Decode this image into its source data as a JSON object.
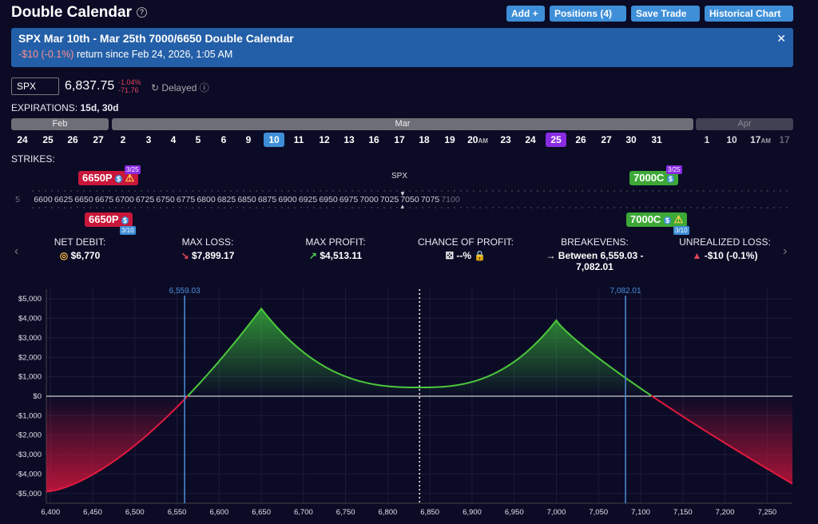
{
  "header": {
    "title": "Double Calendar",
    "buttons": {
      "add": "Add +",
      "positions": "Positions (4)",
      "save": "Save Trade",
      "historical": "Historical Chart"
    }
  },
  "banner": {
    "title": "SPX Mar 10th - Mar 25th 7000/6650 Double Calendar",
    "return_value": "-$10 (-0.1%)",
    "return_text": "return since Feb 24, 2026, 1:05 AM"
  },
  "quote": {
    "symbol": "SPX",
    "price": "6,837.75",
    "change_pct": "-1.04%",
    "change_abs": "-71.76",
    "status": "Delayed"
  },
  "expirations": {
    "label": "EXPIRATIONS:",
    "value": "15d, 30d"
  },
  "calendar": {
    "months": [
      "Feb",
      "Mar",
      "Apr"
    ],
    "days": [
      "24",
      "25",
      "26",
      "27",
      "2",
      "3",
      "4",
      "5",
      "6",
      "9",
      "10",
      "11",
      "12",
      "13",
      "16",
      "17",
      "18",
      "19",
      "20",
      "23",
      "24",
      "25",
      "26",
      "27",
      "30",
      "31",
      "1",
      "10",
      "17",
      "17"
    ],
    "am_label": "AM"
  },
  "strikes": {
    "label": "STRIKES:",
    "underlying": "SPX",
    "ticks": [
      "5",
      "6600",
      "6625",
      "6650",
      "6675",
      "6700",
      "6725",
      "6750",
      "6775",
      "6800",
      "6825",
      "6850",
      "6875",
      "6900",
      "6925",
      "6950",
      "6975",
      "7000",
      "7025",
      "7050",
      "7075",
      "7100"
    ],
    "legs": {
      "put_top": "6650P",
      "put_top_date": "3/25",
      "call_top": "7000C",
      "call_top_date": "3/25",
      "put_bottom": "6650P",
      "put_bottom_date": "3/10",
      "call_bottom": "7000C",
      "call_bottom_date": "3/10"
    }
  },
  "stats": {
    "net_debit_label": "NET DEBIT:",
    "net_debit": "$6,770",
    "max_loss_label": "MAX LOSS:",
    "max_loss": "$7,899.17",
    "max_profit_label": "MAX PROFIT:",
    "max_profit": "$4,513.11",
    "chance_label": "CHANCE OF PROFIT:",
    "chance": "--%",
    "breakevens_label": "BREAKEVENS:",
    "breakevens_line1": "Between 6,559.03 -",
    "breakevens_line2": "7,082.01",
    "unrealized_label": "UNREALIZED LOSS:",
    "unrealized": "-$10 (-0.1%)"
  },
  "chart_data": {
    "type": "area",
    "title": "",
    "xlabel": "",
    "ylabel": "",
    "xlim": [
      6395,
      7280
    ],
    "ylim": [
      -5500,
      5500
    ],
    "x_ticks": [
      "6,400",
      "6,450",
      "6,500",
      "6,550",
      "6,600",
      "6,650",
      "6,700",
      "6,750",
      "6,800",
      "6,850",
      "6,900",
      "6,950",
      "7,000",
      "7,050",
      "7,100",
      "7,150",
      "7,200",
      "7,250"
    ],
    "y_ticks": [
      "$5,000",
      "$4,000",
      "$3,000",
      "$2,000",
      "$1,000",
      "$0",
      "-$1,000",
      "-$2,000",
      "-$3,000",
      "-$4,000",
      "-$5,000"
    ],
    "breakevens": [
      {
        "x": 6559.03,
        "label": "6,559.03"
      },
      {
        "x": 7082.01,
        "label": "7,082.01"
      }
    ],
    "current_price": 6837.75,
    "series": [
      {
        "x": [
          6395,
          6450,
          6500,
          6559.03,
          6600,
          6625,
          6650,
          6700,
          6750,
          6800,
          6837.75,
          6875,
          6925,
          6975,
          7000,
          7040,
          7082.01,
          7150,
          7200,
          7280
        ],
        "values": [
          -4900,
          -3200,
          -1800,
          0,
          2000,
          3100,
          4500,
          2400,
          1200,
          600,
          450,
          650,
          1400,
          2800,
          3900,
          2000,
          0,
          -2000,
          -3200,
          -4500
        ]
      }
    ],
    "colors": {
      "profit": "#3cbf3c",
      "loss": "#d4163c",
      "breakeven": "#4a90d9"
    },
    "grid": true
  }
}
